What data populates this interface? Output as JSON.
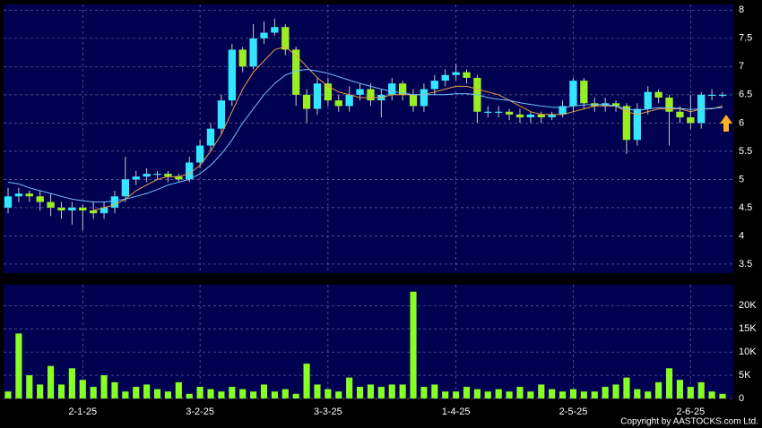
{
  "chart_data": {
    "type": "candlestick",
    "categories": [
      null,
      null,
      null,
      null,
      null,
      null,
      null,
      "2-1-25",
      null,
      null,
      null,
      null,
      null,
      null,
      null,
      null,
      null,
      null,
      "3-2-25",
      null,
      null,
      null,
      null,
      null,
      null,
      null,
      null,
      null,
      null,
      null,
      "3-3-25",
      null,
      null,
      null,
      null,
      null,
      null,
      null,
      null,
      null,
      null,
      null,
      "1-4-25",
      null,
      null,
      null,
      null,
      null,
      null,
      null,
      null,
      null,
      null,
      "2-5-25",
      null,
      null,
      null,
      null,
      null,
      null,
      null,
      null,
      null,
      null,
      "2-6-25",
      null,
      null,
      null
    ],
    "open": [
      4.5,
      4.7,
      4.75,
      4.7,
      4.6,
      4.5,
      4.45,
      4.5,
      4.45,
      4.4,
      4.5,
      4.7,
      5.0,
      5.05,
      5.1,
      5.1,
      5.05,
      5.0,
      5.3,
      5.6,
      5.9,
      6.4,
      7.3,
      7.0,
      7.5,
      7.6,
      7.7,
      7.3,
      6.5,
      6.25,
      6.7,
      6.4,
      6.3,
      6.5,
      6.6,
      6.4,
      6.5,
      6.7,
      6.5,
      6.3,
      6.6,
      6.75,
      6.85,
      6.9,
      6.8,
      6.2,
      6.2,
      6.2,
      6.15,
      6.1,
      6.15,
      6.1,
      6.15,
      6.3,
      6.75,
      6.35,
      6.3,
      6.35,
      6.3,
      5.7,
      6.25,
      6.55,
      6.45,
      6.2,
      6.1,
      6.0,
      6.5,
      6.5
    ],
    "high": [
      4.85,
      4.85,
      4.8,
      4.8,
      4.75,
      4.6,
      4.6,
      4.55,
      4.6,
      4.6,
      4.8,
      5.4,
      5.15,
      5.2,
      5.15,
      5.15,
      5.1,
      5.4,
      5.7,
      6.0,
      6.5,
      7.4,
      7.35,
      7.75,
      7.8,
      7.85,
      7.75,
      7.35,
      6.6,
      6.8,
      6.8,
      6.5,
      6.65,
      6.7,
      6.7,
      6.6,
      6.8,
      6.75,
      6.6,
      6.7,
      6.85,
      6.95,
      7.05,
      6.95,
      6.85,
      6.3,
      6.3,
      6.25,
      6.25,
      6.2,
      6.2,
      6.2,
      6.4,
      6.8,
      6.8,
      6.45,
      6.45,
      6.4,
      6.35,
      6.35,
      6.65,
      6.6,
      6.5,
      6.3,
      6.5,
      6.55,
      6.6,
      6.55
    ],
    "low": [
      4.4,
      4.6,
      4.6,
      4.45,
      4.35,
      4.3,
      4.2,
      4.1,
      4.3,
      4.3,
      4.4,
      4.6,
      4.9,
      4.95,
      5.0,
      4.95,
      4.95,
      4.95,
      5.2,
      5.5,
      5.8,
      6.3,
      6.9,
      6.95,
      7.4,
      7.55,
      7.2,
      6.3,
      6.0,
      6.15,
      6.3,
      6.2,
      6.2,
      6.4,
      6.3,
      6.1,
      6.4,
      6.4,
      6.2,
      6.2,
      6.5,
      6.65,
      6.75,
      6.7,
      6.0,
      6.1,
      6.1,
      6.05,
      6.0,
      6.0,
      6.0,
      6.05,
      6.1,
      6.2,
      6.25,
      6.2,
      6.2,
      6.2,
      5.45,
      5.6,
      6.15,
      6.35,
      5.6,
      6.0,
      5.9,
      5.9,
      6.4,
      6.45
    ],
    "close": [
      4.7,
      4.75,
      4.7,
      4.6,
      4.5,
      4.45,
      4.5,
      4.45,
      4.4,
      4.5,
      4.7,
      5.0,
      5.05,
      5.1,
      5.1,
      5.05,
      5.0,
      5.3,
      5.6,
      5.9,
      6.4,
      7.3,
      7.0,
      7.5,
      7.6,
      7.7,
      7.3,
      6.5,
      6.25,
      6.7,
      6.4,
      6.3,
      6.5,
      6.6,
      6.4,
      6.5,
      6.7,
      6.5,
      6.3,
      6.6,
      6.75,
      6.85,
      6.9,
      6.8,
      6.2,
      6.2,
      6.2,
      6.15,
      6.1,
      6.15,
      6.1,
      6.15,
      6.3,
      6.75,
      6.35,
      6.3,
      6.35,
      6.3,
      5.7,
      6.25,
      6.55,
      6.45,
      6.2,
      6.1,
      6.0,
      6.5,
      6.5,
      6.5
    ],
    "up_color": "#33e6ff",
    "down_color": "#99ee22",
    "wick_color": "#c8c8c8",
    "series": [
      {
        "color": "#f0a040",
        "values": [
          null,
          null,
          null,
          null,
          null,
          null,
          null,
          null,
          4.45,
          4.5,
          4.55,
          4.65,
          4.8,
          4.9,
          5.0,
          5.05,
          5.05,
          5.1,
          5.25,
          5.5,
          5.8,
          6.2,
          6.6,
          6.9,
          7.1,
          7.3,
          7.35,
          7.2,
          7.0,
          6.8,
          6.65,
          6.55,
          6.5,
          6.45,
          6.45,
          6.45,
          6.5,
          6.5,
          6.5,
          6.5,
          6.55,
          6.6,
          6.65,
          6.65,
          6.6,
          6.55,
          6.5,
          6.4,
          6.3,
          6.2,
          6.15,
          6.15,
          6.15,
          6.2,
          6.25,
          6.3,
          6.3,
          6.3,
          6.2,
          6.15,
          6.2,
          6.25,
          6.25,
          6.25,
          6.2,
          6.25,
          6.25,
          6.3
        ]
      },
      {
        "color": "#70c0ff",
        "values": [
          4.95,
          4.92,
          4.85,
          4.8,
          4.75,
          4.7,
          4.65,
          4.62,
          4.6,
          4.6,
          4.62,
          4.65,
          4.7,
          4.75,
          4.82,
          4.9,
          4.95,
          5.0,
          5.1,
          5.25,
          5.45,
          5.7,
          6.0,
          6.25,
          6.5,
          6.7,
          6.85,
          6.92,
          6.95,
          6.92,
          6.88,
          6.82,
          6.76,
          6.7,
          6.65,
          6.6,
          6.56,
          6.53,
          6.5,
          6.5,
          6.5,
          6.5,
          6.52,
          6.52,
          6.5,
          6.45,
          6.42,
          6.4,
          6.36,
          6.33,
          6.3,
          6.28,
          6.27,
          6.3,
          6.32,
          6.33,
          6.33,
          6.3,
          6.25,
          6.22,
          6.25,
          6.27,
          6.27,
          6.26,
          6.24,
          6.25,
          6.26,
          6.27
        ]
      }
    ],
    "ylim": [
      3.34,
      8.1
    ],
    "yticks": [
      3.5,
      4,
      4.5,
      5,
      5.5,
      6,
      6.5,
      7,
      7.5,
      8
    ],
    "grid": true,
    "volume": {
      "color": "#88ff22",
      "values": [
        1500,
        14000,
        5000,
        3000,
        7000,
        3000,
        6500,
        4000,
        2500,
        5000,
        3500,
        1500,
        2500,
        3000,
        2000,
        1500,
        3500,
        1000,
        2500,
        2000,
        1500,
        2500,
        2000,
        1500,
        3000,
        1500,
        2000,
        1000,
        7500,
        3000,
        2000,
        1500,
        4500,
        2500,
        3000,
        2500,
        3000,
        3000,
        23000,
        2500,
        3000,
        1500,
        1500,
        2500,
        2000,
        1500,
        2000,
        1500,
        2500,
        1500,
        3000,
        2000,
        1500,
        2000,
        1500,
        1500,
        2500,
        3000,
        4500,
        2000,
        1500,
        3500,
        6500,
        4000,
        2500,
        3500,
        1500,
        1000
      ],
      "ylim": [
        0,
        24500
      ],
      "yticks": [
        0,
        {
          "value": 5000,
          "label": "5K"
        },
        {
          "value": 10000,
          "label": "10K"
        },
        {
          "value": 15000,
          "label": "15K"
        },
        {
          "value": 20000,
          "label": "20K"
        }
      ]
    },
    "footer": "Copyright by AASTOCKS.com Ltd."
  }
}
